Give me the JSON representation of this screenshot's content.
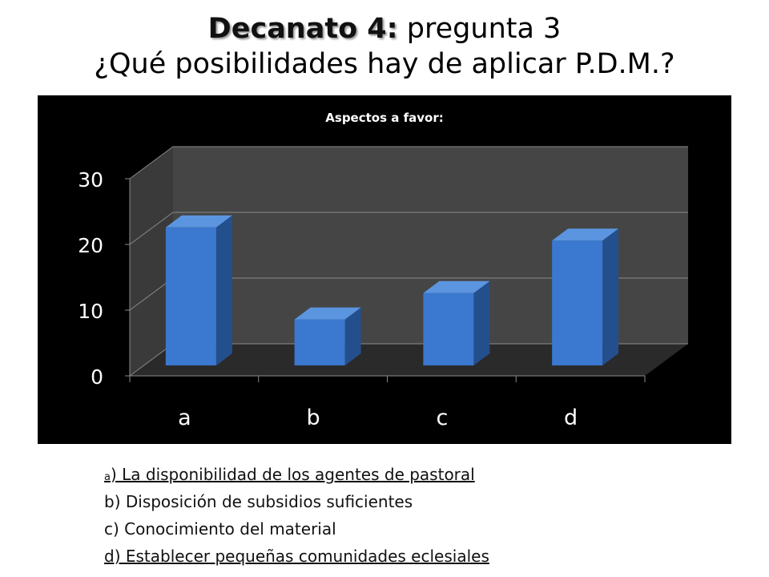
{
  "slide": {
    "title_bold": "Decanato 4:",
    "title_rest": " pregunta 3",
    "subtitle": "¿Qué posibilidades hay de aplicar P.D.M.?"
  },
  "chart_data": {
    "type": "bar",
    "title": "Aspectos a favor:",
    "categories": [
      "a",
      "b",
      "c",
      "d"
    ],
    "values": [
      21,
      7,
      11,
      19
    ],
    "ylim": [
      0,
      30
    ],
    "yticks": [
      "0",
      "10",
      "20",
      "30"
    ],
    "xlabel": "",
    "ylabel": "",
    "grid": true,
    "three_d": true,
    "colors": {
      "background": "#000000",
      "bar_front": "#3b78cf",
      "bar_side": "#244f8d",
      "bar_top": "#5b95e0",
      "wall": "#454545",
      "floor": "#2a2a2a",
      "grid": "#8a8a8a",
      "text": "#ffffff"
    }
  },
  "legend": {
    "a_prefix": "a",
    "a_text": ") La disponibilidad de los agentes de pastoral",
    "b": "b) Disposición de subsidios suficientes",
    "c": "c) Conocimiento del material",
    "d": "d) Establecer pequeñas comunidades eclesiales"
  }
}
